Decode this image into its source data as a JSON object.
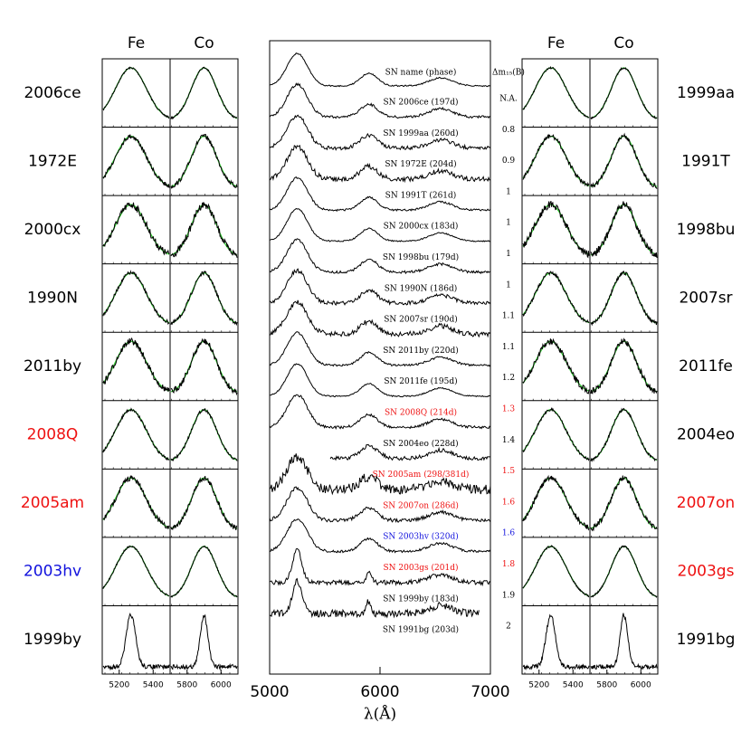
{
  "left_panel": {
    "headers": [
      "Fe",
      "Co"
    ],
    "fe_ticks": [
      5200,
      5400
    ],
    "co_ticks": [
      5800,
      6000
    ],
    "rows": [
      {
        "label": "2006ce",
        "color": "#000000"
      },
      {
        "label": "1972E",
        "color": "#000000"
      },
      {
        "label": "2000cx",
        "color": "#000000"
      },
      {
        "label": "1990N",
        "color": "#000000"
      },
      {
        "label": "2011by",
        "color": "#000000"
      },
      {
        "label": "2008Q",
        "color": "#ee1111"
      },
      {
        "label": "2005am",
        "color": "#ee1111"
      },
      {
        "label": "2003hv",
        "color": "#1111dd"
      },
      {
        "label": "1999by",
        "color": "#000000"
      }
    ]
  },
  "center_panel": {
    "name_header": "SN name (phase)",
    "dm_header": "Δm₁₅(B)",
    "xlim": [
      5000,
      7000
    ],
    "xticks": [
      5000,
      6000,
      7000
    ],
    "xlabel": "λ(Å)",
    "entries": [
      {
        "name": "SN 2006ce (197d)",
        "dm15": "N.A.",
        "color": "#000000"
      },
      {
        "name": "SN 1999aa (260d)",
        "dm15": 0.8,
        "color": "#000000"
      },
      {
        "name": "SN 1972E (204d)",
        "dm15": 0.9,
        "color": "#000000"
      },
      {
        "name": "SN 1991T (261d)",
        "dm15": 1,
        "color": "#000000"
      },
      {
        "name": "SN 2000cx (183d)",
        "dm15": 1,
        "color": "#000000"
      },
      {
        "name": "SN 1998bu (179d)",
        "dm15": 1,
        "color": "#000000"
      },
      {
        "name": "SN 1990N (186d)",
        "dm15": 1,
        "color": "#000000"
      },
      {
        "name": "SN 2007sr (190d)",
        "dm15": 1.1,
        "color": "#000000"
      },
      {
        "name": "SN 2011by (220d)",
        "dm15": 1.1,
        "color": "#000000"
      },
      {
        "name": "SN 2011fe (195d)",
        "dm15": 1.2,
        "color": "#000000"
      },
      {
        "name": "SN 2008Q (214d)",
        "dm15": 1.3,
        "color": "#ee1111"
      },
      {
        "name": "SN 2004eo (228d)",
        "dm15": 1.4,
        "color": "#000000"
      },
      {
        "name": "SN 2005am (298/381d)",
        "dm15": 1.5,
        "color": "#ee1111"
      },
      {
        "name": "SN 2007on (286d)",
        "dm15": 1.6,
        "color": "#ee1111"
      },
      {
        "name": "SN 2003hv (320d)",
        "dm15": 1.6,
        "color": "#1111dd"
      },
      {
        "name": "SN 2003gs (201d)",
        "dm15": 1.8,
        "color": "#ee1111"
      },
      {
        "name": "SN 1999by (183d)",
        "dm15": 1.9,
        "color": "#000000"
      },
      {
        "name": "SN 1991bg (203d)",
        "dm15": 2,
        "color": "#000000"
      }
    ]
  },
  "right_panel": {
    "headers": [
      "Fe",
      "Co"
    ],
    "fe_ticks": [
      5200,
      5400
    ],
    "co_ticks": [
      5800,
      6000
    ],
    "rows": [
      {
        "label": "1999aa",
        "color": "#000000"
      },
      {
        "label": "1991T",
        "color": "#000000"
      },
      {
        "label": "1998bu",
        "color": "#000000"
      },
      {
        "label": "2007sr",
        "color": "#000000"
      },
      {
        "label": "2011fe",
        "color": "#000000"
      },
      {
        "label": "2004eo",
        "color": "#000000"
      },
      {
        "label": "2007on",
        "color": "#ee1111"
      },
      {
        "label": "2003gs",
        "color": "#ee1111"
      },
      {
        "label": "1991bg",
        "color": "#000000"
      }
    ]
  }
}
